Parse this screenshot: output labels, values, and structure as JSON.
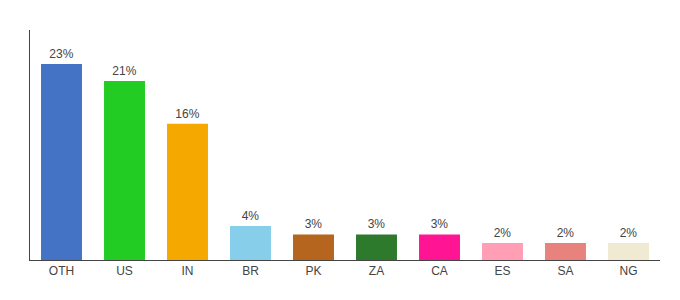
{
  "chart_data": {
    "type": "bar",
    "categories": [
      "OTH",
      "US",
      "IN",
      "BR",
      "PK",
      "ZA",
      "CA",
      "ES",
      "SA",
      "NG"
    ],
    "values": [
      23,
      21,
      16,
      4,
      3,
      3,
      3,
      2,
      2,
      2
    ],
    "value_labels": [
      "23%",
      "21%",
      "16%",
      "4%",
      "3%",
      "3%",
      "3%",
      "2%",
      "2%",
      "2%"
    ],
    "colors": [
      "#4472c4",
      "#22cc22",
      "#f5a800",
      "#87ceeb",
      "#b5651d",
      "#2d7a2d",
      "#ff1493",
      "#ff9eb5",
      "#e8827c",
      "#f0ead2"
    ],
    "ylim": [
      0,
      27
    ],
    "grid": false,
    "tick_labels": "x",
    "data_labels": true
  }
}
